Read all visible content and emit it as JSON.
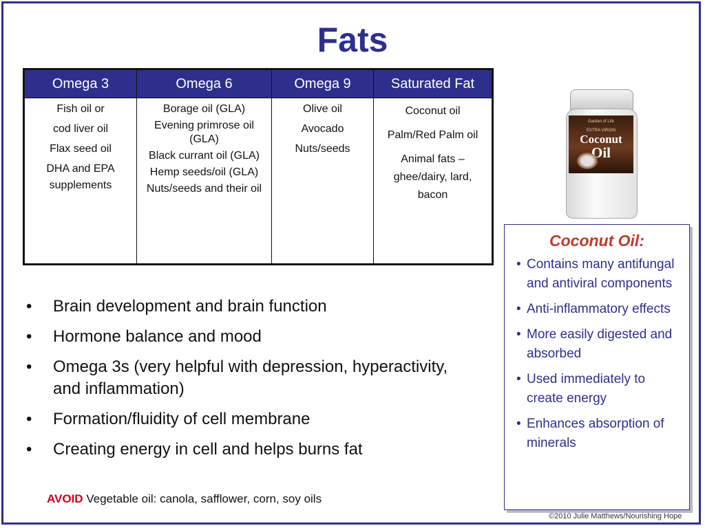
{
  "title": "Fats",
  "table": {
    "headers": [
      "Omega 3",
      "Omega 6",
      "Omega 9",
      "Saturated Fat"
    ],
    "columns": [
      [
        "Fish oil or",
        "cod liver oil",
        "Flax seed oil",
        "DHA and EPA",
        "supplements"
      ],
      [
        "Borage oil (GLA)",
        "Evening primrose oil (GLA)",
        "Black currant oil (GLA)",
        "Hemp seeds/oil (GLA)",
        "Nuts/seeds and their oil"
      ],
      [
        "Olive oil",
        "Avocado",
        "Nuts/seeds"
      ],
      [
        "Coconut oil",
        "Palm/Red Palm oil",
        "Animal fats – ghee/dairy, lard, bacon"
      ]
    ]
  },
  "jar": {
    "brand": "Garden of Life",
    "variant": "EXTRA VIRGIN",
    "name_line1": "Coconut",
    "name_line2": "Oil"
  },
  "callout": {
    "title": "Coconut Oil:",
    "items": [
      "Contains many antifungal and antiviral components",
      "Anti-inflammatory effects",
      "More easily digested and absorbed",
      "Used immediately to create energy",
      "Enhances absorption of minerals"
    ]
  },
  "bullets": [
    "Brain development and brain function",
    "Hormone balance and mood",
    "Omega 3s (very helpful with depression, hyperactivity, and inflammation)",
    "Formation/fluidity of cell membrane",
    "Creating energy in cell and helps burns fat"
  ],
  "avoid": {
    "label": "AVOID",
    "text": "Vegetable oil: canola, safflower, corn, soy oils"
  },
  "copyright": "©2010 Julie Matthews/Nourishing Hope",
  "colors": {
    "accent": "#2e2f8c",
    "callout_title": "#c0392b",
    "avoid": "#d0021b"
  }
}
